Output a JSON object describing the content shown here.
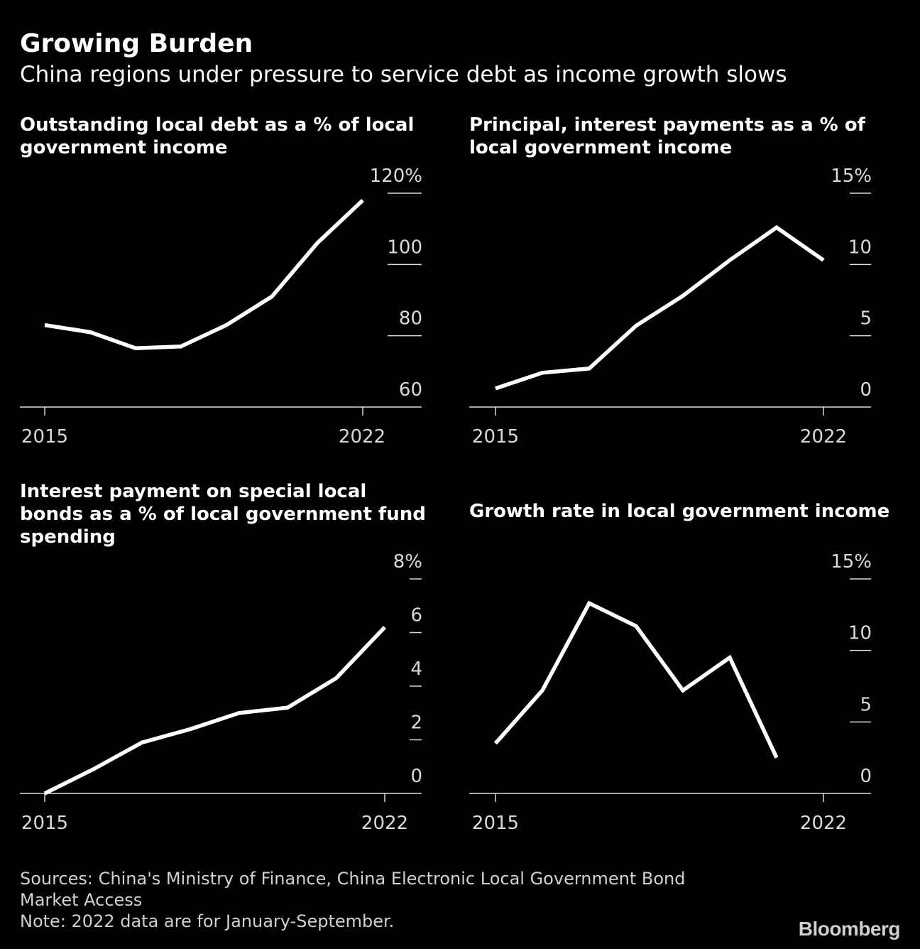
{
  "title": "Growing Burden",
  "subtitle": "China regions under pressure to service debt as income growth slows",
  "colors": {
    "background": "#000000",
    "line": "#ffffff",
    "axis": "#d9d9d9"
  },
  "chart_data": [
    {
      "type": "line",
      "title": "Outstanding local debt as a % of local government income",
      "x": [
        2015,
        2016,
        2017,
        2018,
        2019,
        2020,
        2021,
        2022
      ],
      "values": [
        83,
        81,
        76.5,
        77,
        83,
        91,
        106,
        118
      ],
      "ylim": [
        60,
        120
      ],
      "yticks": [
        60,
        80,
        100,
        120
      ],
      "ytick_labels": [
        "60",
        "80",
        "100",
        "120%"
      ],
      "xtick_labels": [
        "2015",
        "2022"
      ],
      "xlabel": "",
      "ylabel": ""
    },
    {
      "type": "line",
      "title": "Principal, interest payments as a % of local government income",
      "x": [
        2015,
        2016,
        2017,
        2018,
        2019,
        2020,
        2021,
        2022
      ],
      "values": [
        1.3,
        2.4,
        2.7,
        5.7,
        7.8,
        10.3,
        12.6,
        10.3
      ],
      "ylim": [
        0,
        15
      ],
      "yticks": [
        0,
        5,
        10,
        15
      ],
      "ytick_labels": [
        "0",
        "5",
        "10",
        "15%"
      ],
      "xtick_labels": [
        "2015",
        "2022"
      ],
      "xlabel": "",
      "ylabel": ""
    },
    {
      "type": "line",
      "title": "Interest payment on special local bonds as a % of local government fund spending",
      "x": [
        2015,
        2016,
        2017,
        2018,
        2019,
        2020,
        2021,
        2022
      ],
      "values": [
        0,
        0.9,
        1.9,
        2.4,
        3.0,
        3.2,
        4.3,
        6.2
      ],
      "ylim": [
        0,
        8
      ],
      "yticks": [
        0,
        2,
        4,
        6,
        8
      ],
      "ytick_labels": [
        "0",
        "2",
        "4",
        "6",
        "8%"
      ],
      "xtick_labels": [
        "2015",
        "2022"
      ],
      "xlabel": "",
      "ylabel": ""
    },
    {
      "type": "line",
      "title": "Growth rate in local government income",
      "x": [
        2015,
        2016,
        2017,
        2018,
        2019,
        2020,
        2021
      ],
      "values": [
        3.5,
        7.2,
        13.3,
        11.7,
        7.2,
        9.5,
        2.5
      ],
      "ylim": [
        0,
        15
      ],
      "yticks": [
        0,
        5,
        10,
        15
      ],
      "ytick_labels": [
        "0",
        "5",
        "10",
        "15%"
      ],
      "xtick_labels": [
        "2015",
        "2022"
      ],
      "xlabel": "",
      "ylabel": ""
    }
  ],
  "footer": {
    "source_line1": "Sources: China's Ministry of Finance, China Electronic Local Government Bond",
    "source_line2": "Market Access",
    "note": "Note: 2022 data are for January-September.",
    "brand": "Bloomberg"
  }
}
